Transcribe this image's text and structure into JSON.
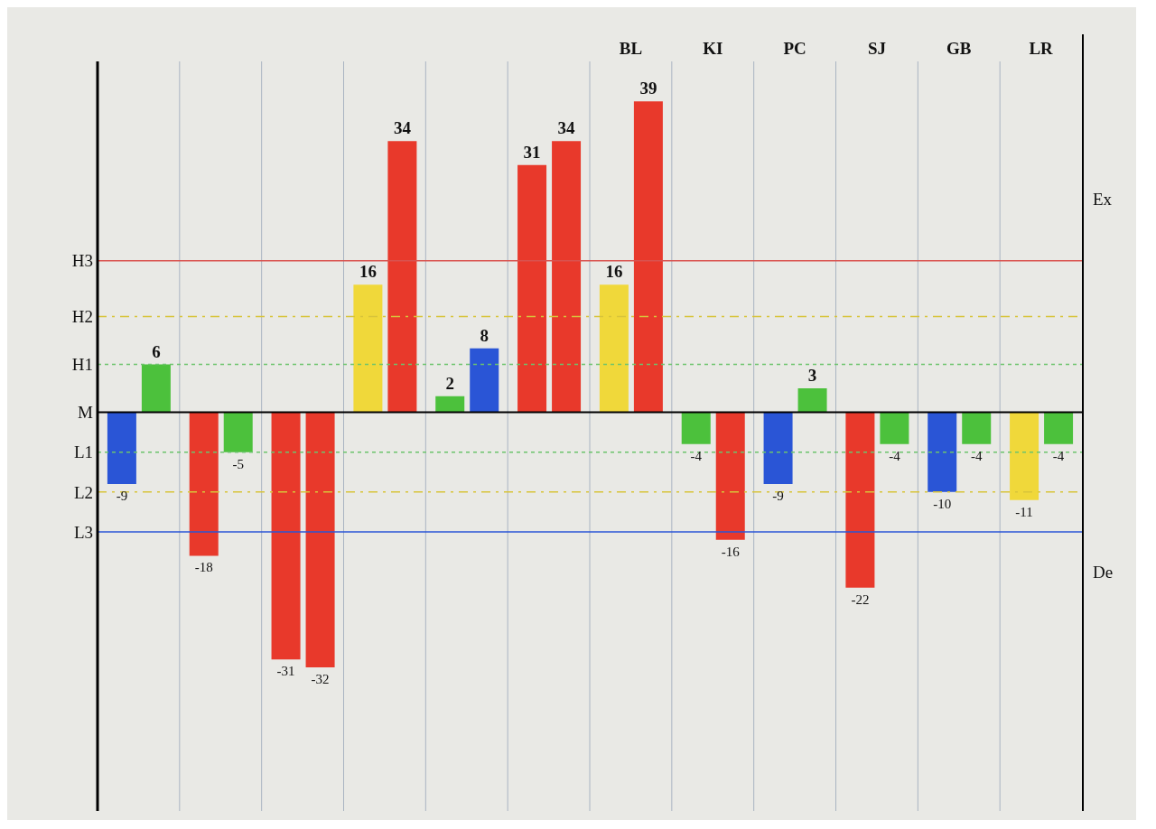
{
  "chart_data": {
    "type": "bar",
    "categories": [
      null,
      null,
      null,
      null,
      null,
      null,
      "BL",
      "KI",
      "PC",
      "SJ",
      "GB",
      "LR"
    ],
    "series": [
      {
        "values": [
          -9,
          -18,
          -31,
          16,
          2,
          31,
          16,
          -4,
          -9,
          -22,
          -10,
          -11
        ],
        "colors": [
          "#2a55d6",
          "#e8392b",
          "#e8392b",
          "#f0d83a",
          "#4cc13c",
          "#e8392b",
          "#f0d83a",
          "#4cc13c",
          "#2a55d6",
          "#e8392b",
          "#2a55d6",
          "#f0d83a"
        ]
      },
      {
        "values": [
          6,
          -5,
          -32,
          34,
          8,
          34,
          39,
          -16,
          3,
          -4,
          -4,
          -4
        ],
        "colors": [
          "#4cc13c",
          "#4cc13c",
          "#e8392b",
          "#e8392b",
          "#2a55d6",
          "#e8392b",
          "#e8392b",
          "#e8392b",
          "#4cc13c",
          "#4cc13c",
          "#4cc13c",
          "#4cc13c"
        ]
      }
    ],
    "ylim": [
      -50,
      44
    ],
    "ref_lines": [
      {
        "axis": "y",
        "value": 19,
        "label": "H3",
        "color": "#d9534f",
        "line_style": "solid"
      },
      {
        "axis": "y",
        "value": 12,
        "label": "H2",
        "color": "#d8c43a",
        "line_style": "dashed"
      },
      {
        "axis": "y",
        "value": 6,
        "label": "H1",
        "color": "#6cc46c",
        "line_style": "dotted"
      },
      {
        "axis": "y",
        "value": 0,
        "label": "M",
        "color": "#000000",
        "line_style": "solid"
      },
      {
        "axis": "y",
        "value": -5,
        "label": "L1",
        "color": "#6cc46c",
        "line_style": "dotted"
      },
      {
        "axis": "y",
        "value": -10,
        "label": "L2",
        "color": "#d8c43a",
        "line_style": "dashed"
      },
      {
        "axis": "y",
        "value": -15,
        "label": "L3",
        "color": "#2a55d6",
        "line_style": "solid"
      }
    ],
    "annotations": [
      "Ex",
      "De"
    ],
    "data_labels": true,
    "grid": "x"
  }
}
